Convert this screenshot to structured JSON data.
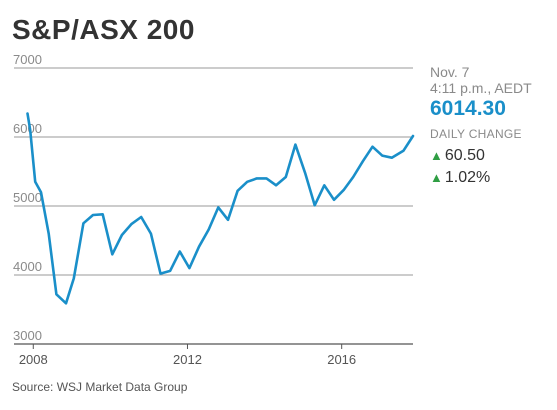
{
  "chart_data": {
    "type": "line",
    "title": "S&P/ASX 200",
    "xlabel": "",
    "ylabel": "",
    "ylim": [
      3000,
      7000
    ],
    "xlim": [
      2007.5,
      2017.85
    ],
    "y_ticks": [
      7000,
      6000,
      5000,
      4000,
      3000
    ],
    "x_ticks": [
      2008,
      2012,
      2016
    ],
    "grid": "horizontal",
    "line_color": "#1a8fc9",
    "series": [
      {
        "x": [
          2007.85,
          2007.92,
          2008.05,
          2008.2,
          2008.4,
          2008.6,
          2008.85,
          2009.05,
          2009.3,
          2009.55,
          2009.8,
          2010.05,
          2010.3,
          2010.55,
          2010.8,
          2011.05,
          2011.3,
          2011.55,
          2011.8,
          2012.05,
          2012.3,
          2012.55,
          2012.8,
          2013.05,
          2013.3,
          2013.55,
          2013.8,
          2014.05,
          2014.3,
          2014.55,
          2014.8,
          2015.05,
          2015.3,
          2015.55,
          2015.8,
          2016.05,
          2016.3,
          2016.55,
          2016.8,
          2017.05,
          2017.3,
          2017.6,
          2017.85
        ],
        "y": [
          6340,
          6100,
          5350,
          5200,
          4600,
          3720,
          3590,
          3950,
          4750,
          4870,
          4880,
          4300,
          4580,
          4740,
          4840,
          4600,
          4020,
          4060,
          4340,
          4100,
          4410,
          4660,
          4980,
          4800,
          5220,
          5350,
          5400,
          5400,
          5300,
          5420,
          5890,
          5480,
          5010,
          5300,
          5090,
          5230,
          5420,
          5650,
          5860,
          5730,
          5700,
          5800,
          6014.3
        ]
      }
    ]
  },
  "info": {
    "date": "Nov. 7",
    "time": "4:11 p.m., AEDT",
    "value": "6014.30",
    "change_label": "DAILY CHANGE",
    "change_points": "60.50",
    "change_percent": "1.02%",
    "up_color": "#2f9e44"
  },
  "source": "Source: WSJ Market Data Group"
}
